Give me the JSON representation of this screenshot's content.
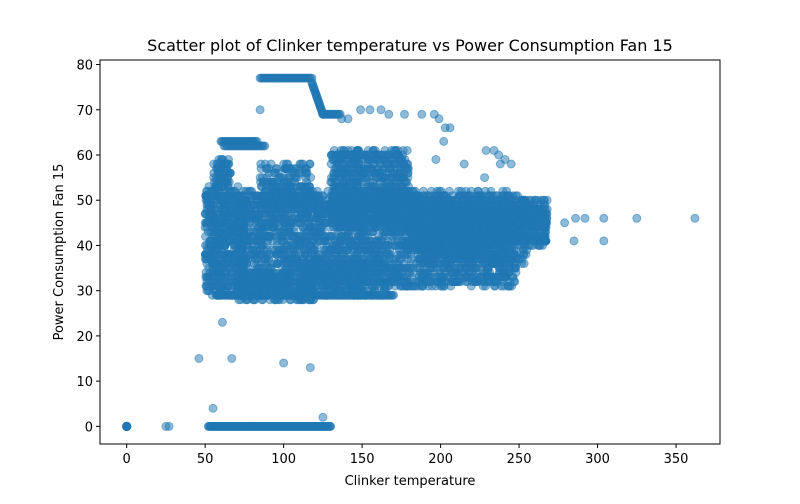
{
  "chart_data": {
    "type": "scatter",
    "title": "Scatter plot of Clinker temperature vs Power Consumption Fan 15",
    "xlabel": "Clinker temperature",
    "ylabel": "Power Consumption Fan 15",
    "xlim": [
      -17,
      378
    ],
    "ylim": [
      -3.9,
      81
    ],
    "xticks": [
      0,
      50,
      100,
      150,
      200,
      250,
      300,
      350
    ],
    "yticks": [
      0,
      10,
      20,
      30,
      40,
      50,
      60,
      70,
      80
    ],
    "grid": false,
    "marker_color": "#1f77b4",
    "marker_alpha": 0.5,
    "outliers": [
      {
        "x": 0,
        "y": 0
      },
      {
        "x": 25,
        "y": 0
      },
      {
        "x": 27,
        "y": 0
      },
      {
        "x": 46,
        "y": 15
      },
      {
        "x": 55,
        "y": 4
      },
      {
        "x": 61,
        "y": 23
      },
      {
        "x": 67,
        "y": 15
      },
      {
        "x": 100,
        "y": 14
      },
      {
        "x": 117,
        "y": 13
      },
      {
        "x": 125,
        "y": 2
      },
      {
        "x": 85,
        "y": 70
      },
      {
        "x": 137,
        "y": 68
      },
      {
        "x": 141,
        "y": 68
      },
      {
        "x": 149,
        "y": 70
      },
      {
        "x": 155,
        "y": 70
      },
      {
        "x": 162,
        "y": 70
      },
      {
        "x": 167,
        "y": 69
      },
      {
        "x": 177,
        "y": 69
      },
      {
        "x": 188,
        "y": 69
      },
      {
        "x": 196,
        "y": 69
      },
      {
        "x": 199,
        "y": 68
      },
      {
        "x": 203,
        "y": 66
      },
      {
        "x": 206,
        "y": 66
      },
      {
        "x": 202,
        "y": 63
      },
      {
        "x": 197,
        "y": 59
      },
      {
        "x": 215,
        "y": 58
      },
      {
        "x": 229,
        "y": 61
      },
      {
        "x": 234,
        "y": 61
      },
      {
        "x": 237,
        "y": 60
      },
      {
        "x": 241,
        "y": 59
      },
      {
        "x": 238,
        "y": 58
      },
      {
        "x": 245,
        "y": 58
      },
      {
        "x": 228,
        "y": 55
      },
      {
        "x": 249,
        "y": 51
      },
      {
        "x": 266,
        "y": 48
      },
      {
        "x": 279,
        "y": 45
      },
      {
        "x": 286,
        "y": 46
      },
      {
        "x": 292,
        "y": 46
      },
      {
        "x": 304,
        "y": 46
      },
      {
        "x": 325,
        "y": 46
      },
      {
        "x": 362,
        "y": 46
      },
      {
        "x": 285,
        "y": 41
      },
      {
        "x": 304,
        "y": 41
      },
      {
        "x": 267,
        "y": 41
      },
      {
        "x": 259,
        "y": 40
      },
      {
        "x": 252,
        "y": 37
      },
      {
        "x": 246,
        "y": 38
      },
      {
        "x": 197,
        "y": 31
      },
      {
        "x": 193,
        "y": 32
      }
    ],
    "segments": [
      {
        "x0": 0,
        "x1": 0,
        "y0": 0,
        "y1": 0,
        "n": 12
      },
      {
        "x0": 52,
        "x1": 130,
        "y0": 0,
        "y1": 0,
        "n": 160
      },
      {
        "x0": 85,
        "x1": 118,
        "y0": 77,
        "y1": 77,
        "n": 40
      },
      {
        "x0": 118,
        "x1": 125,
        "y0": 76,
        "y1": 69,
        "n": 25
      },
      {
        "x0": 125,
        "x1": 136,
        "y0": 69,
        "y1": 69,
        "n": 16
      },
      {
        "x0": 60,
        "x1": 83,
        "y0": 63,
        "y1": 63,
        "n": 30
      },
      {
        "x0": 62,
        "x1": 88,
        "y0": 62,
        "y1": 62,
        "n": 30
      },
      {
        "x0": 57,
        "x1": 170,
        "y0": 29,
        "y1": 29,
        "n": 150
      }
    ],
    "clusters": [
      {
        "x0": 70,
        "x1": 248,
        "y0": 31,
        "y1": 52,
        "n": 2600
      },
      {
        "x0": 130,
        "x1": 180,
        "y0": 44,
        "y1": 61,
        "n": 700
      },
      {
        "x0": 180,
        "x1": 268,
        "y0": 40,
        "y1": 50,
        "n": 1000
      },
      {
        "x0": 190,
        "x1": 255,
        "y0": 36,
        "y1": 46,
        "n": 350
      },
      {
        "x0": 50,
        "x1": 75,
        "y0": 29,
        "y1": 53,
        "n": 550
      },
      {
        "x0": 55,
        "x1": 66,
        "y0": 53,
        "y1": 59,
        "n": 70
      },
      {
        "x0": 70,
        "x1": 120,
        "y0": 28,
        "y1": 33,
        "n": 300
      },
      {
        "x0": 110,
        "x1": 165,
        "y0": 29,
        "y1": 37,
        "n": 300
      },
      {
        "x0": 85,
        "x1": 118,
        "y0": 48,
        "y1": 58,
        "n": 200
      }
    ]
  }
}
